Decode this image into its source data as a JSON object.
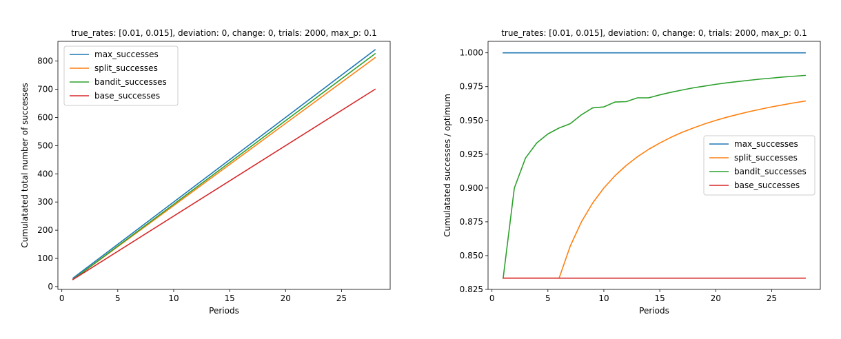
{
  "chart_data": [
    {
      "type": "line",
      "title": "true_rates: [0.01, 0.015], deviation: 0, change: 0, trials: 2000, max_p: 0.1",
      "xlabel": "Periods",
      "ylabel": "Cumulatated total number of successes",
      "xlim": [
        -0.35,
        29.35
      ],
      "ylim": [
        -10,
        870
      ],
      "xticks": [
        0,
        5,
        10,
        15,
        20,
        25
      ],
      "yticks": [
        0,
        100,
        200,
        300,
        400,
        500,
        600,
        700,
        800
      ],
      "grid": false,
      "legend_position": "top-left",
      "x": [
        1,
        28
      ],
      "series": [
        {
          "name": "max_successes",
          "color": "#1f77b4",
          "values": [
            30,
            840
          ]
        },
        {
          "name": "split_successes",
          "color": "#ff7f0e",
          "values": [
            25,
            812
          ]
        },
        {
          "name": "bandit_successes",
          "color": "#2ca02c",
          "values": [
            25,
            826
          ]
        },
        {
          "name": "base_successes",
          "color": "#d62728",
          "values": [
            25,
            700
          ]
        }
      ]
    },
    {
      "type": "line",
      "title": "true_rates: [0.01, 0.015], deviation: 0, change: 0, trials: 2000, max_p: 0.1",
      "xlabel": "Periods",
      "ylabel": "Cumulatated successes / optimum",
      "xlim": [
        -0.35,
        29.35
      ],
      "ylim": [
        0.825,
        1.0085
      ],
      "xticks": [
        0,
        5,
        10,
        15,
        20,
        25
      ],
      "yticks": [
        0.825,
        0.85,
        0.875,
        0.9,
        0.925,
        0.95,
        0.975,
        1.0
      ],
      "ytick_labels": [
        "0.825",
        "0.850",
        "0.875",
        "0.900",
        "0.925",
        "0.950",
        "0.975",
        "1.000"
      ],
      "grid": false,
      "legend_position": "center-right",
      "x": [
        1,
        2,
        3,
        4,
        5,
        6,
        7,
        8,
        9,
        10,
        11,
        12,
        13,
        14,
        15,
        16,
        17,
        18,
        19,
        20,
        21,
        22,
        23,
        24,
        25,
        26,
        27,
        28
      ],
      "series": [
        {
          "name": "max_successes",
          "color": "#1f77b4",
          "values": [
            1,
            1,
            1,
            1,
            1,
            1,
            1,
            1,
            1,
            1,
            1,
            1,
            1,
            1,
            1,
            1,
            1,
            1,
            1,
            1,
            1,
            1,
            1,
            1,
            1,
            1,
            1,
            1
          ]
        },
        {
          "name": "split_successes",
          "color": "#ff7f0e",
          "values": [
            0.8333,
            0.8333,
            0.8333,
            0.8333,
            0.8333,
            0.8333,
            0.8571,
            0.875,
            0.8889,
            0.9,
            0.9091,
            0.9167,
            0.9231,
            0.9286,
            0.9333,
            0.9375,
            0.9412,
            0.9444,
            0.9474,
            0.95,
            0.9524,
            0.9545,
            0.9565,
            0.9583,
            0.96,
            0.9615,
            0.963,
            0.9643
          ]
        },
        {
          "name": "bandit_successes",
          "color": "#2ca02c",
          "values": [
            0.8333,
            0.9,
            0.9222,
            0.9333,
            0.94,
            0.9444,
            0.9476,
            0.9542,
            0.9593,
            0.96,
            0.9636,
            0.9639,
            0.9667,
            0.9667,
            0.9689,
            0.9708,
            0.9725,
            0.9741,
            0.9754,
            0.9767,
            0.9778,
            0.9788,
            0.9797,
            0.9806,
            0.9813,
            0.9821,
            0.9827,
            0.9833
          ]
        },
        {
          "name": "base_successes",
          "color": "#d62728",
          "values": [
            0.8333,
            0.8333,
            0.8333,
            0.8333,
            0.8333,
            0.8333,
            0.8333,
            0.8333,
            0.8333,
            0.8333,
            0.8333,
            0.8333,
            0.8333,
            0.8333,
            0.8333,
            0.8333,
            0.8333,
            0.8333,
            0.8333,
            0.8333,
            0.8333,
            0.8333,
            0.8333,
            0.8333,
            0.8333,
            0.8333,
            0.8333,
            0.8333
          ]
        }
      ]
    }
  ]
}
